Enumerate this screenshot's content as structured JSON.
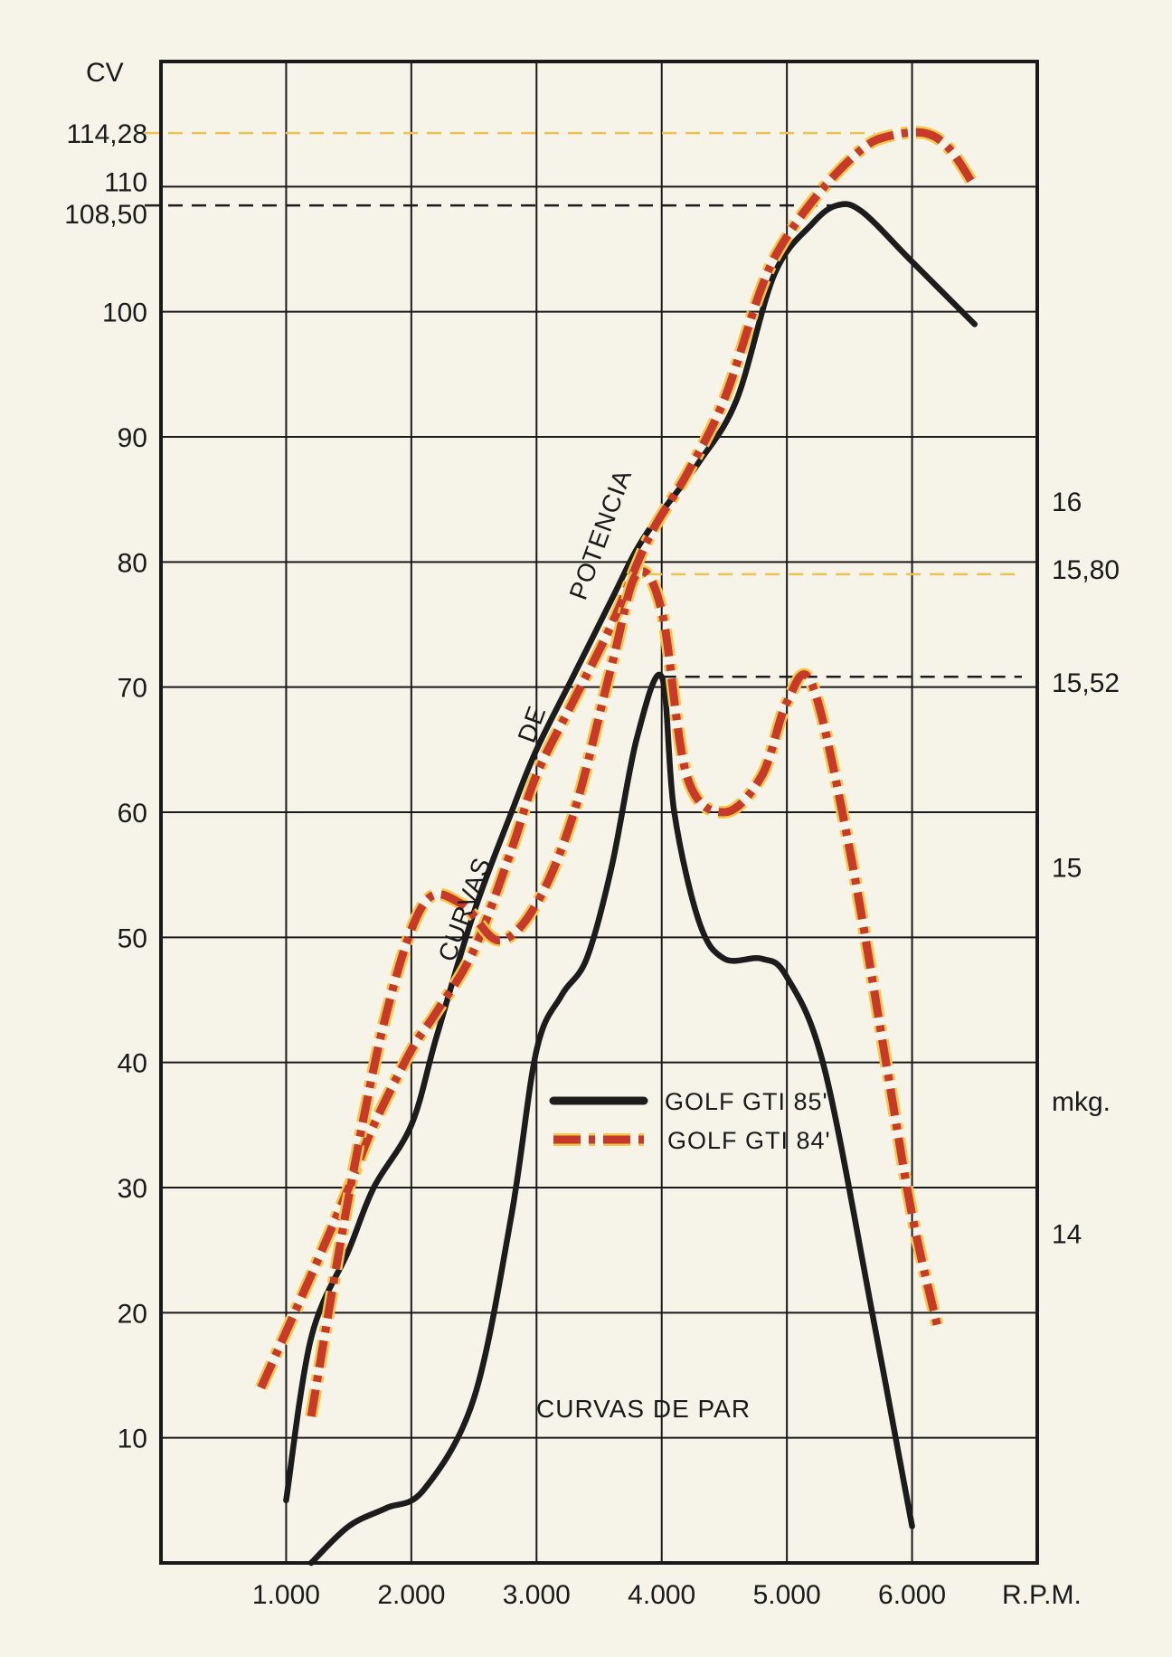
{
  "chart_data": {
    "type": "line",
    "x_unit": "R.P.M.",
    "y_left_unit": "CV",
    "y_right_unit": "mkg.",
    "x_ticks": [
      {
        "value": 1000,
        "label": "1.000"
      },
      {
        "value": 2000,
        "label": "2.000"
      },
      {
        "value": 3000,
        "label": "3.000"
      },
      {
        "value": 4000,
        "label": "4.000"
      },
      {
        "value": 5000,
        "label": "5.000"
      },
      {
        "value": 6000,
        "label": "6.000"
      }
    ],
    "y_left_ticks": [
      {
        "value": 10,
        "label": "10"
      },
      {
        "value": 20,
        "label": "20"
      },
      {
        "value": 30,
        "label": "30"
      },
      {
        "value": 40,
        "label": "40"
      },
      {
        "value": 50,
        "label": "50"
      },
      {
        "value": 60,
        "label": "60"
      },
      {
        "value": 70,
        "label": "70"
      },
      {
        "value": 80,
        "label": "80"
      },
      {
        "value": 90,
        "label": "90"
      },
      {
        "value": 100,
        "label": "100"
      },
      {
        "value": 108.5,
        "label": "108,50"
      },
      {
        "value": 110,
        "label": "110"
      },
      {
        "value": 114.28,
        "label": "114,28"
      }
    ],
    "y_right_ticks": [
      {
        "value": 14,
        "label": "14"
      },
      {
        "value": 15,
        "label": "15"
      },
      {
        "value": 15.52,
        "label": "15,52"
      },
      {
        "value": 15.8,
        "label": "15,80"
      },
      {
        "value": 16,
        "label": "16"
      }
    ],
    "xlim": [
      0,
      7000
    ],
    "ylim_left": [
      0,
      120
    ],
    "ylim_right": [
      13.1,
      17.2
    ],
    "grid": true,
    "legend": {
      "placement": "center-right",
      "entries": [
        {
          "label": "GOLF GTI 85'",
          "style": "solid",
          "color": "#1c1c1c"
        },
        {
          "label": "GOLF GTI 84'",
          "style": "dash-dot",
          "color": "#c8392b",
          "edge_color": "#f3c945"
        }
      ]
    },
    "annotations": {
      "power_curves": [
        "CURVAS",
        "DE",
        "POTENCIA"
      ],
      "torque_curves": "CURVAS DE PAR"
    },
    "reference_lines": [
      {
        "axis": "left",
        "value": 114.28,
        "color": "#e9c452",
        "x_to": 5700
      },
      {
        "axis": "left",
        "value": 108.5,
        "color": "#1c1c1c",
        "x_to": 5400
      },
      {
        "axis": "right",
        "value": 15.8,
        "color": "#e9c452",
        "x_from": 3700
      },
      {
        "axis": "right",
        "value": 15.52,
        "color": "#1c1c1c",
        "x_from": 4000
      }
    ],
    "series": [
      {
        "name": "GOLF GTI 85'",
        "curve": "power",
        "axis": "left",
        "x": [
          1000,
          1200,
          1500,
          1700,
          2000,
          2200,
          2500,
          2800,
          3000,
          3300,
          3600,
          3800,
          4000,
          4300,
          4600,
          4900,
          5200,
          5400,
          5600,
          6000,
          6500
        ],
        "y": [
          5,
          18,
          25,
          30,
          35,
          42,
          52,
          60,
          65,
          71,
          77,
          81,
          84,
          88,
          93,
          103,
          107,
          108.5,
          108,
          104,
          99
        ]
      },
      {
        "name": "GOLF GTI 84'",
        "curve": "power",
        "axis": "left",
        "x": [
          800,
          1200,
          1500,
          1700,
          2000,
          2200,
          2500,
          2800,
          3000,
          3300,
          3600,
          3900,
          4200,
          4500,
          4800,
          5000,
          5300,
          5600,
          5800,
          6100,
          6300,
          6500
        ],
        "y": [
          14,
          23,
          30,
          35,
          41,
          44,
          49,
          57,
          63,
          69,
          75,
          82,
          87,
          93,
          102,
          106,
          110,
          113,
          114,
          114.28,
          113,
          110
        ]
      },
      {
        "name": "GOLF GTI 85'",
        "curve": "torque",
        "axis": "right",
        "x": [
          1200,
          1500,
          1800,
          2100,
          2500,
          2800,
          3000,
          3200,
          3400,
          3600,
          3800,
          4000,
          4100,
          4300,
          4500,
          4800,
          5000,
          5300,
          5700,
          6000
        ],
        "y": [
          13.1,
          13.2,
          13.25,
          13.3,
          13.55,
          14.05,
          14.5,
          14.65,
          14.75,
          15.0,
          15.35,
          15.52,
          15.15,
          14.85,
          14.75,
          14.75,
          14.7,
          14.45,
          13.75,
          13.2
        ]
      },
      {
        "name": "GOLF GTI 84'",
        "curve": "torque",
        "axis": "right",
        "x": [
          1200,
          1500,
          1800,
          2100,
          2400,
          2700,
          3000,
          3300,
          3600,
          3800,
          4000,
          4200,
          4500,
          4800,
          5000,
          5200,
          5500,
          5800,
          6000,
          6200
        ],
        "y": [
          13.5,
          14.1,
          14.6,
          14.9,
          14.9,
          14.8,
          14.9,
          15.15,
          15.55,
          15.8,
          15.7,
          15.25,
          15.15,
          15.25,
          15.45,
          15.5,
          15.05,
          14.45,
          14.05,
          13.75
        ]
      }
    ]
  }
}
